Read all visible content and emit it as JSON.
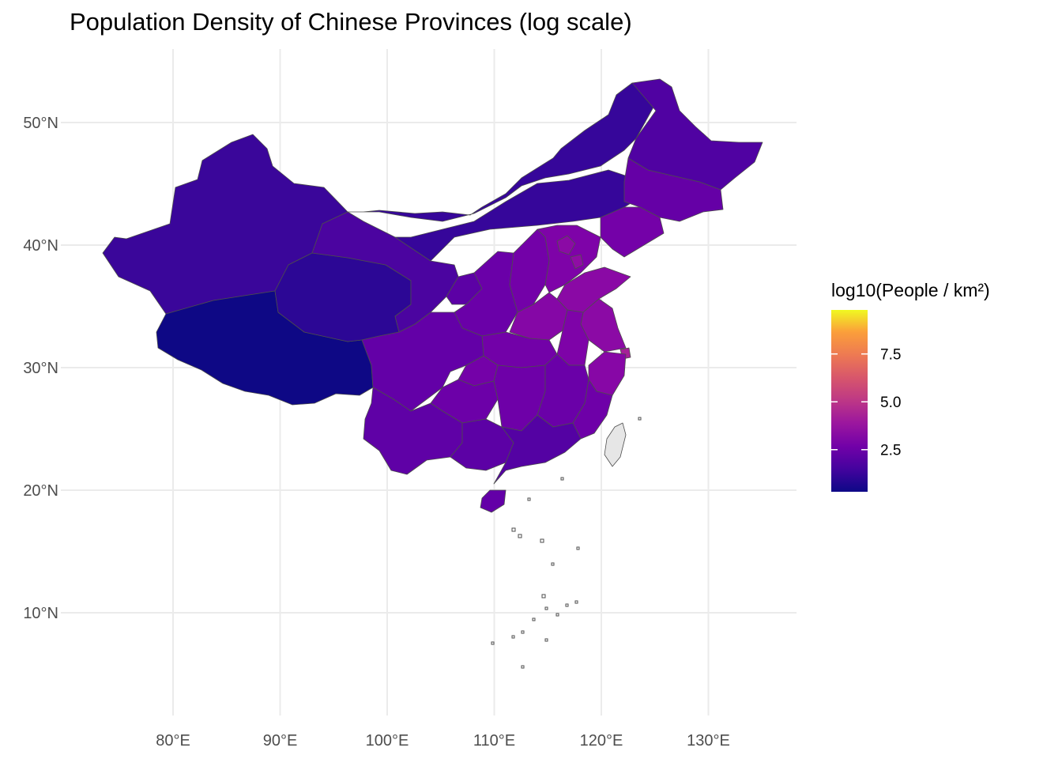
{
  "title": "Population Density of Chinese Provinces (log scale)",
  "map": {
    "projection": "lon-lat",
    "x_ticks": [
      {
        "value": 80,
        "label": "80°E"
      },
      {
        "value": 90,
        "label": "90°E"
      },
      {
        "value": 100,
        "label": "100°E"
      },
      {
        "value": 110,
        "label": "110°E"
      },
      {
        "value": 120,
        "label": "120°E"
      },
      {
        "value": 130,
        "label": "130°E"
      }
    ],
    "y_ticks": [
      {
        "value": 10,
        "label": "10°N"
      },
      {
        "value": 20,
        "label": "20°N"
      },
      {
        "value": 30,
        "label": "30°N"
      },
      {
        "value": 40,
        "label": "40°N"
      },
      {
        "value": 50,
        "label": "50°N"
      }
    ],
    "x_range": [
      71,
      138
    ],
    "y_range": [
      3,
      56
    ],
    "grid": true,
    "background": "#ffffff",
    "border_color": "#4d4d4d",
    "missing_color": "#e6e6e6"
  },
  "legend": {
    "title": "log10(People / km²)",
    "position": "right",
    "palette": "plasma",
    "range": [
      0.3,
      9.8
    ],
    "ticks": [
      {
        "value": 2.5,
        "label": "2.5"
      },
      {
        "value": 5.0,
        "label": "5.0"
      },
      {
        "value": 7.5,
        "label": "7.5"
      }
    ]
  }
}
